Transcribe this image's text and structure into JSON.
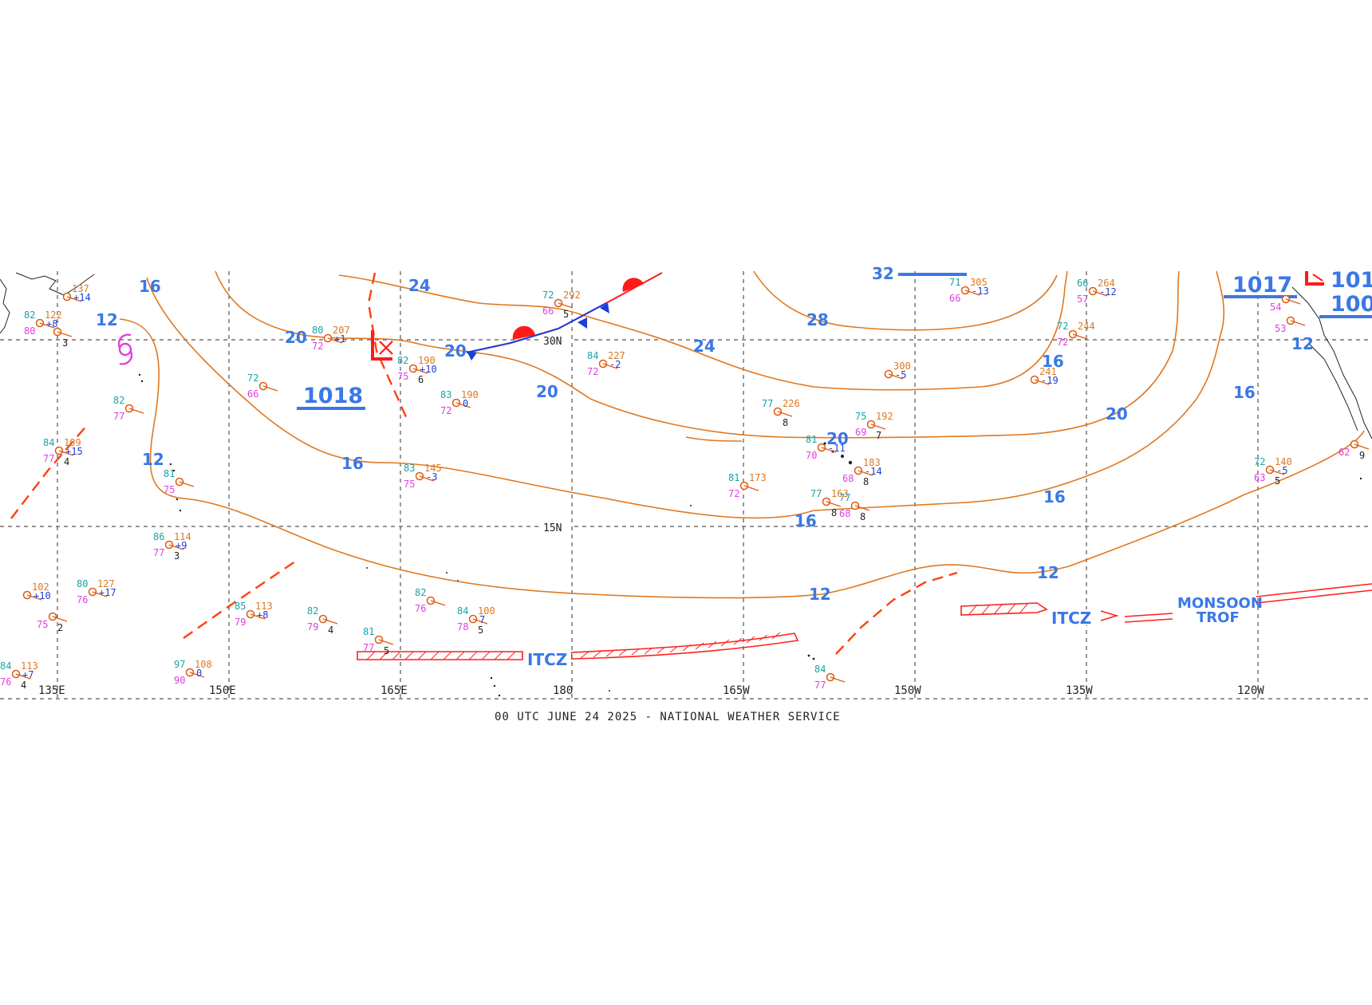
{
  "footer": "00 UTC JUNE 24 2025 - NATIONAL WEATHER SERVICE",
  "latitude_labels": [
    "30N",
    "15N"
  ],
  "longitude_labels": [
    "135E",
    "150E",
    "165E",
    "180",
    "165W",
    "150W",
    "135W",
    "120W"
  ],
  "isobar_labels": {
    "a": "16",
    "b": "12",
    "c": "24",
    "d": "20",
    "e": "20",
    "f": "20",
    "g": "24",
    "h": "28",
    "i": "32",
    "j": "12",
    "k": "16",
    "l": "20",
    "m": "16",
    "n": "16",
    "o": "12",
    "p": "12",
    "q": "20",
    "r": "12",
    "s": "16",
    "t": "16"
  },
  "pressure_centers": {
    "high_1018": "1018",
    "high_1017": "1017",
    "edge_101": "101",
    "edge_100": "100"
  },
  "features": {
    "itcz_1": "ITCZ",
    "itcz_2": "ITCZ",
    "monsoon_1": "MONSOON",
    "monsoon_2": "TROF"
  },
  "colors": {
    "isobar": "#e07820",
    "label": "#3a78e6",
    "cold_front": "#1a3fd8",
    "warm_front": "#ff1a1a",
    "trough": "#ff4010",
    "itcz": "#ff2020",
    "grid": "#555555",
    "cyclone": "#e040e0"
  },
  "icons": [
    "low-pressure-icon",
    "tropical-cyclone-icon",
    "station-circle-icon"
  ],
  "stations": [
    {
      "t": "82",
      "p": "122",
      "d": "80",
      "tend": "+8"
    },
    {
      "t": "",
      "p": "137",
      "d": "",
      "tend": "+14"
    },
    {
      "t": "",
      "p": "",
      "d": "",
      "tend": "",
      "v": "3"
    },
    {
      "t": "80",
      "p": "207",
      "d": "72",
      "tend": "+1"
    },
    {
      "t": "72",
      "p": "292",
      "d": "66",
      "tend": "",
      "v": "5"
    },
    {
      "t": "71",
      "p": "305",
      "d": "66",
      "tend": "-13"
    },
    {
      "t": "66",
      "p": "264",
      "d": "57",
      "tend": "-12"
    },
    {
      "t": "72",
      "p": "244",
      "d": "72",
      "tend": ""
    },
    {
      "t": "72",
      "p": "",
      "d": "66",
      "tend": ""
    },
    {
      "t": "82",
      "p": "190",
      "d": "75",
      "tend": "+10",
      "v": "6"
    },
    {
      "t": "84",
      "p": "227",
      "d": "72",
      "tend": "-2"
    },
    {
      "t": "83",
      "p": "190",
      "d": "72",
      "tend": "0"
    },
    {
      "t": "",
      "p": "300",
      "d": "",
      "tend": "-5"
    },
    {
      "t": "",
      "p": "241",
      "d": "",
      "tend": "-19"
    },
    {
      "t": "82",
      "p": "",
      "d": "77",
      "tend": ""
    },
    {
      "t": "84",
      "p": "109",
      "d": "77",
      "tend": "+15",
      "v": "4"
    },
    {
      "t": "77",
      "p": "226",
      "d": "",
      "tend": "",
      "v": "8"
    },
    {
      "t": "75",
      "p": "192",
      "d": "69",
      "tend": "",
      "v": "7"
    },
    {
      "t": "81",
      "p": "",
      "d": "70",
      "tend": "-11"
    },
    {
      "t": "",
      "p": "183",
      "d": "68",
      "tend": "-14",
      "v": "8"
    },
    {
      "t": "81",
      "p": "",
      "d": "75",
      "tend": ""
    },
    {
      "t": "83",
      "p": "145",
      "d": "75",
      "tend": "-3"
    },
    {
      "t": "81",
      "p": "173",
      "d": "72",
      "tend": ""
    },
    {
      "t": "77",
      "p": "163",
      "d": "",
      "tend": "",
      "v": "8"
    },
    {
      "t": "77",
      "p": "",
      "d": "68",
      "tend": "",
      "v": "8"
    },
    {
      "t": "72",
      "p": "140",
      "d": "63",
      "tend": "-5",
      "v": "5"
    },
    {
      "t": "86",
      "p": "114",
      "d": "77",
      "tend": "+9",
      "v": "3"
    },
    {
      "t": "",
      "p": "102",
      "d": "",
      "tend": "+10"
    },
    {
      "t": "80",
      "p": "127",
      "d": "76",
      "tend": "+17"
    },
    {
      "t": "85",
      "p": "113",
      "d": "79",
      "tend": "+8"
    },
    {
      "t": "82",
      "p": "",
      "d": "79",
      "tend": "",
      "v": "4"
    },
    {
      "t": "82",
      "p": "",
      "d": "76",
      "tend": ""
    },
    {
      "t": "84",
      "p": "100",
      "d": "78",
      "tend": "7",
      "v": "5"
    },
    {
      "t": "81",
      "p": "",
      "d": "77",
      "tend": "",
      "v": "5"
    },
    {
      "t": "84",
      "p": "113",
      "d": "76",
      "tend": "+7",
      "v": "4"
    },
    {
      "t": "97",
      "p": "108",
      "d": "90",
      "tend": "0"
    },
    {
      "t": "84",
      "p": "",
      "d": "77",
      "tend": ""
    },
    {
      "t": "",
      "p": "",
      "d": "75",
      "tend": "",
      "v": "2"
    },
    {
      "t": "",
      "p": "",
      "d": "54",
      "tend": ""
    },
    {
      "t": "",
      "p": "",
      "d": "53",
      "tend": ""
    },
    {
      "t": "",
      "p": "",
      "d": "62",
      "tend": "",
      "v": "9"
    }
  ]
}
